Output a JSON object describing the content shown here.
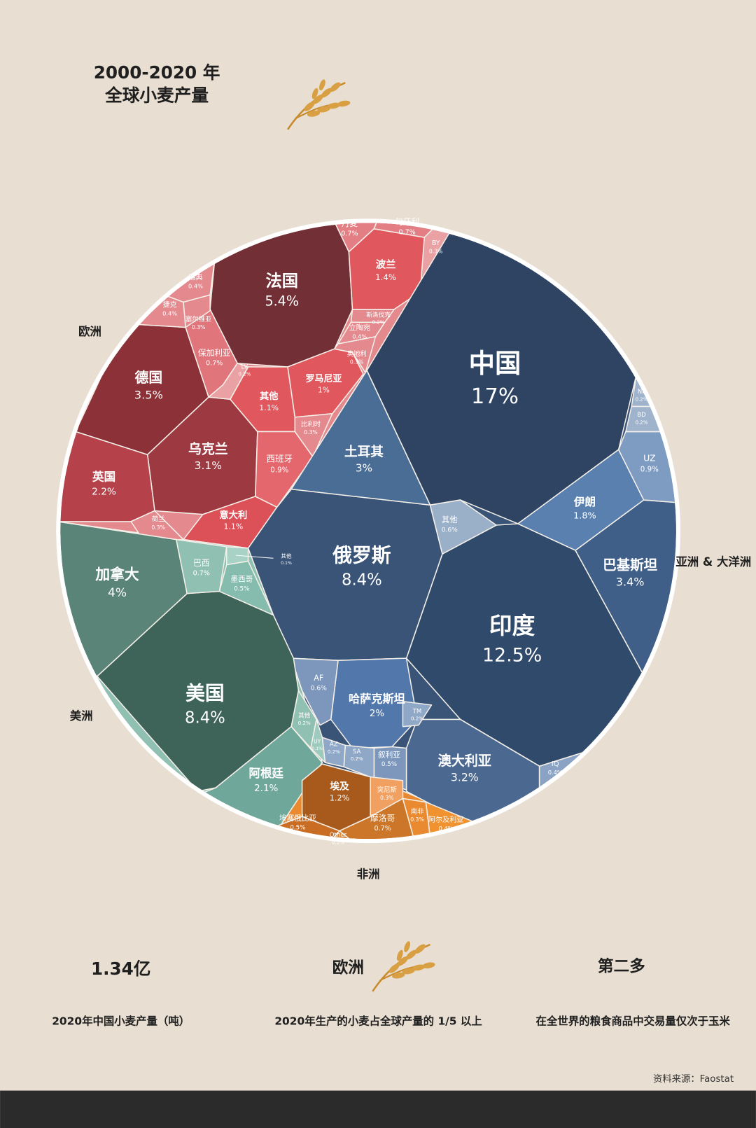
{
  "chart_data": {
    "type": "voronoi-treemap",
    "title": "2000-2020 年",
    "subtitle": "全球小麦产量",
    "series": [
      {
        "name": "欧洲",
        "categories": [
          "法国",
          "德国",
          "乌克兰",
          "英国",
          "波兰",
          "其他",
          "意大利",
          "罗马尼亚",
          "西班牙",
          "丹麦",
          "匈牙利",
          "保加利亚",
          "捷克",
          "瑞典",
          "立陶宛",
          "塞尔维亚",
          "比利时",
          "荷兰",
          "奥地利",
          "BY",
          "斯洛伐克",
          "LV"
        ],
        "values": [
          5.4,
          3.5,
          3.1,
          2.2,
          1.4,
          1.1,
          1.1,
          1,
          0.9,
          0.7,
          0.7,
          0.7,
          0.4,
          0.4,
          0.4,
          0.3,
          0.3,
          0.3,
          0.3,
          0.3,
          0.2,
          0.2
        ],
        "value_labels": [
          "5.4%",
          "3.5%",
          "3.1%",
          "2.2%",
          "1.4%",
          "1.1%",
          "1.1%",
          "1%",
          "0.9%",
          "0.7%",
          "0.7%",
          "0.7%",
          "0.4%",
          "0.4%",
          "0.4%",
          "0.3%",
          "0.3%",
          "0.3%",
          "0.3%",
          "0.3%",
          "0.2%",
          "0.2%"
        ],
        "colors": [
          "#722f35",
          "#8b3137",
          "#9d3a41",
          "#b5424a",
          "#e0585e",
          "#e0585e",
          "#dc5058",
          "#e0585e",
          "#e3676d",
          "#e37f84",
          "#e37f84",
          "#e0757b",
          "#e48a8f",
          "#e48a8f",
          "#e48a8f",
          "#e48a8f",
          "#e48a8f",
          "#e48a8f",
          "#e48a8f",
          "#e9a1a4",
          "#e48a8f",
          "#e9a1a4"
        ]
      },
      {
        "name": "亚洲 & 大洋洲",
        "categories": [
          "中国",
          "印度",
          "俄罗斯",
          "巴基斯坦",
          "澳大利亚",
          "土耳其",
          "哈萨克斯坦",
          "伊朗",
          "UZ",
          "其他",
          "AF",
          "叙利亚",
          "IQ",
          "NP",
          "BD",
          "TM",
          "SA",
          "AZ"
        ],
        "values": [
          17,
          12.5,
          8.4,
          3.4,
          3.2,
          3,
          2,
          1.8,
          0.9,
          0.6,
          0.6,
          0.5,
          0.4,
          0.2,
          0.2,
          0.2,
          0.2,
          0.2
        ],
        "value_labels": [
          "17%",
          "12.5%",
          "8.4%",
          "3.4%",
          "3.2%",
          "3%",
          "2%",
          "1.8%",
          "0.9%",
          "0.6%",
          "0.6%",
          "0.5%",
          "0.4%",
          "0.2%",
          "0.2%",
          "0.2%",
          "0.2%",
          "0.2%"
        ],
        "colors": [
          "#2e4462",
          "#304a6b",
          "#3a5478",
          "#3f5f88",
          "#4b6890",
          "#4a6d96",
          "#5277aa",
          "#5a80b0",
          "#7e9cc2",
          "#9aafc8",
          "#7d97bc",
          "#7d97bc",
          "#8aa3c4",
          "#9fb4cc",
          "#9fb4cc",
          "#8fa8c8",
          "#8fa8c8",
          "#8fa8c8"
        ]
      },
      {
        "name": "美洲",
        "categories": [
          "美国",
          "加拿大",
          "阿根廷",
          "巴西",
          "墨西哥",
          "其他",
          "UY",
          "其他"
        ],
        "values": [
          8.4,
          4,
          2.1,
          0.7,
          0.5,
          0.2,
          0.1,
          0.1
        ],
        "value_labels": [
          "8.4%",
          "4%",
          "2.1%",
          "0.7%",
          "0.5%",
          "0.2%",
          "0.1%",
          "0.1%"
        ],
        "colors": [
          "#3e6359",
          "#5a8478",
          "#6fa89b",
          "#8fc0b2",
          "#86bcae",
          "#8fc0b2",
          "#9ccabd",
          "#a8d2c6"
        ]
      },
      {
        "name": "非洲",
        "categories": [
          "埃及",
          "摩洛哥",
          "埃塞俄比亚",
          "阿尔及利亚",
          "突尼斯",
          "南非",
          "Other"
        ],
        "values": [
          1.2,
          0.7,
          0.5,
          0.4,
          0.3,
          0.3,
          0.2
        ],
        "value_labels": [
          "1.2%",
          "0.7%",
          "0.5%",
          "0.4%",
          "0.3%",
          "0.3%",
          "0.2%"
        ],
        "colors": [
          "#a85a1c",
          "#cc7629",
          "#c96d24",
          "#f0922f",
          "#f0a060",
          "#e98a30",
          "#d9822e"
        ]
      }
    ]
  },
  "stats": [
    {
      "value": "1.34亿",
      "caption": "2020年中国小麦产量（吨）"
    },
    {
      "value": "欧洲",
      "caption": "2020年生产的小麦占全球产量的 1/5 以上"
    },
    {
      "value": "第二多",
      "caption": "在全世界的粮食商品中交易量仅次于玉米"
    }
  ],
  "source": "资料来源：Faostat"
}
